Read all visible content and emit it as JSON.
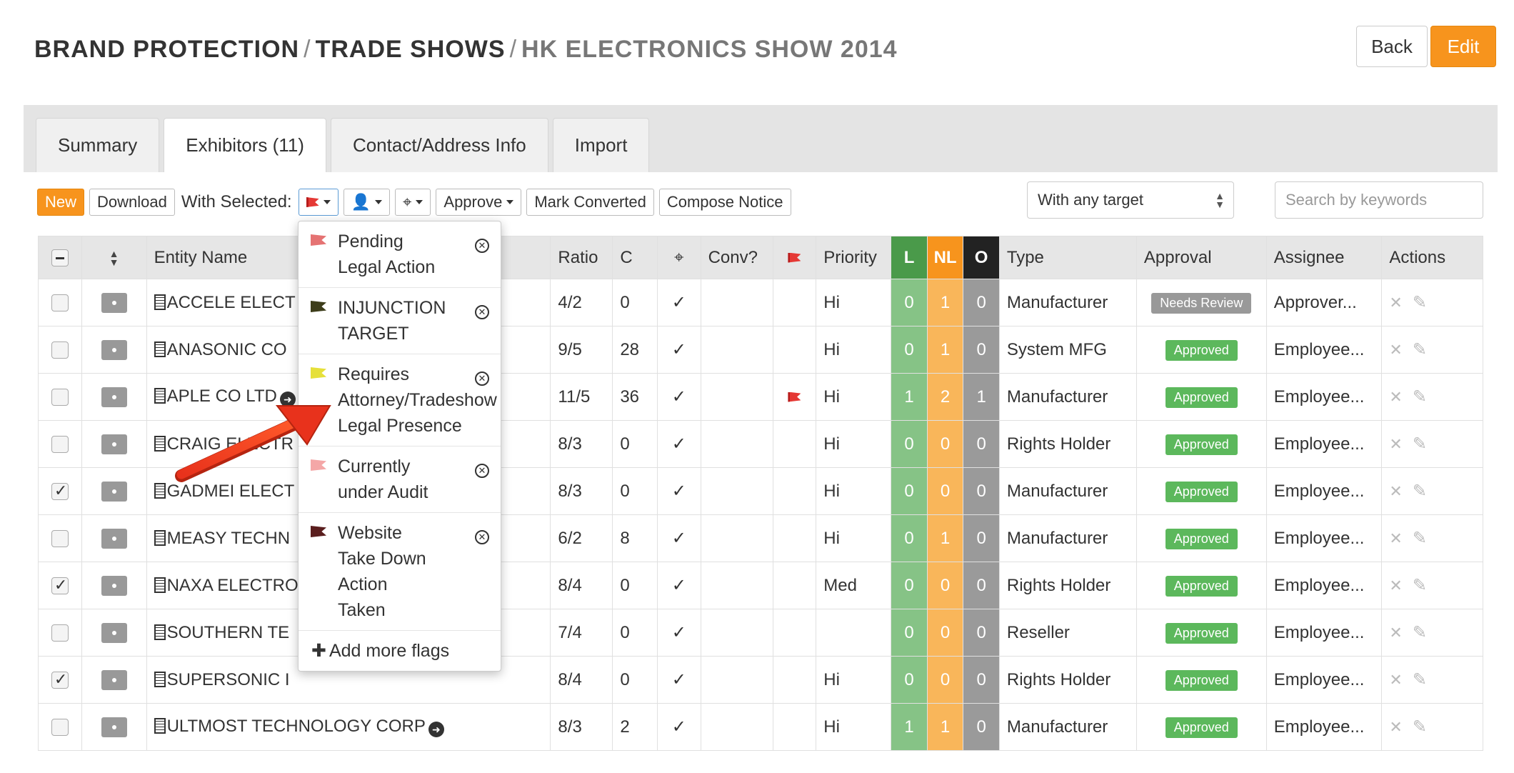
{
  "breadcrumb": {
    "part1": "BRAND PROTECTION",
    "part2": "TRADE SHOWS",
    "part3": "HK ELECTRONICS SHOW 2014",
    "separator": "/"
  },
  "header": {
    "back_label": "Back",
    "edit_label": "Edit"
  },
  "tabs": [
    {
      "label": "Summary"
    },
    {
      "label": "Exhibitors (11)"
    },
    {
      "label": "Contact/Address Info"
    },
    {
      "label": "Import"
    }
  ],
  "toolbar": {
    "new_label": "New",
    "download_label": "Download",
    "with_selected_label": "With Selected:",
    "approve_label": "Approve",
    "mark_converted_label": "Mark Converted",
    "compose_notice_label": "Compose Notice",
    "target_select_value": "With any target",
    "search_placeholder": "Search by keywords"
  },
  "table": {
    "headers": {
      "entity": "Entity Name",
      "ratio": "Ratio",
      "c": "C",
      "conv": "Conv?",
      "priority": "Priority",
      "l": "L",
      "nl": "NL",
      "o": "O",
      "type": "Type",
      "approval": "Approval",
      "assignee": "Assignee",
      "actions": "Actions"
    },
    "rows": [
      {
        "checked": false,
        "entity": "ACCELE ELECT",
        "ratio": "4/2",
        "c": "0",
        "target": "✓",
        "flag": false,
        "priority": "Hi",
        "l": "0",
        "nl": "1",
        "o": "0",
        "type": "Manufacturer",
        "approval": "Needs Review",
        "assignee": "Approver..."
      },
      {
        "checked": false,
        "entity": "ANASONIC CO",
        "ratio": "9/5",
        "c": "28",
        "target": "✓",
        "flag": false,
        "priority": "Hi",
        "l": "0",
        "nl": "1",
        "o": "0",
        "type": "System MFG",
        "approval": "Approved",
        "assignee": "Employee..."
      },
      {
        "checked": false,
        "entity": "APLE CO LTD",
        "ratio": "11/5",
        "c": "36",
        "target": "✓",
        "flag": true,
        "priority": "Hi",
        "l": "1",
        "nl": "2",
        "o": "1",
        "type": "Manufacturer",
        "approval": "Approved",
        "assignee": "Employee..."
      },
      {
        "checked": false,
        "entity": "CRAIG ELECTR",
        "ratio": "8/3",
        "c": "0",
        "target": "✓",
        "flag": false,
        "priority": "Hi",
        "l": "0",
        "nl": "0",
        "o": "0",
        "type": "Rights Holder",
        "approval": "Approved",
        "assignee": "Employee..."
      },
      {
        "checked": true,
        "entity": "GADMEI ELECT",
        "ratio": "8/3",
        "c": "0",
        "target": "✓",
        "flag": false,
        "priority": "Hi",
        "l": "0",
        "nl": "0",
        "o": "0",
        "type": "Manufacturer",
        "approval": "Approved",
        "assignee": "Employee..."
      },
      {
        "checked": false,
        "entity": "MEASY TECHN",
        "ratio": "6/2",
        "c": "8",
        "target": "✓",
        "flag": false,
        "priority": "Hi",
        "l": "0",
        "nl": "1",
        "o": "0",
        "type": "Manufacturer",
        "approval": "Approved",
        "assignee": "Employee..."
      },
      {
        "checked": true,
        "entity": "NAXA ELECTRO",
        "ratio": "8/4",
        "c": "0",
        "target": "✓",
        "flag": false,
        "priority": "Med",
        "l": "0",
        "nl": "0",
        "o": "0",
        "type": "Rights Holder",
        "approval": "Approved",
        "assignee": "Employee..."
      },
      {
        "checked": false,
        "entity": "SOUTHERN TE",
        "ratio": "7/4",
        "c": "0",
        "target": "✓",
        "flag": false,
        "priority": "",
        "l": "0",
        "nl": "0",
        "o": "0",
        "type": "Reseller",
        "approval": "Approved",
        "assignee": "Employee..."
      },
      {
        "checked": true,
        "entity": "SUPERSONIC I",
        "ratio": "8/4",
        "c": "0",
        "target": "✓",
        "flag": false,
        "priority": "Hi",
        "l": "0",
        "nl": "0",
        "o": "0",
        "type": "Rights Holder",
        "approval": "Approved",
        "assignee": "Employee..."
      },
      {
        "checked": false,
        "entity": "ULTMOST TECHNOLOGY CORP",
        "ratio": "8/3",
        "c": "2",
        "target": "✓",
        "flag": false,
        "priority": "Hi",
        "l": "1",
        "nl": "1",
        "o": "0",
        "type": "Manufacturer",
        "approval": "Approved",
        "assignee": "Employee..."
      }
    ]
  },
  "flag_menu": {
    "items": [
      {
        "label": "Pending Legal Action",
        "color": "#e57373"
      },
      {
        "label": "INJUNCTION TARGET",
        "color": "#3d3d1a"
      },
      {
        "label": "Requires Attorney/Tradeshow Legal Presence",
        "color": "#e6e03a"
      },
      {
        "label": "Currently under Audit",
        "color": "#f4a7a7"
      },
      {
        "label": "Website Take Down Action Taken",
        "color": "#5a1e1e"
      }
    ],
    "add_label": "Add more flags"
  },
  "colors": {
    "accent": "#f7941d",
    "approved": "#5cb85c",
    "flag_red": "#e53935"
  }
}
